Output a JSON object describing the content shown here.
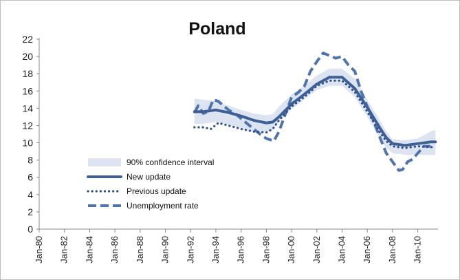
{
  "chart_data": {
    "type": "line",
    "title": "Poland",
    "xlabel": "",
    "ylabel": "",
    "xlim": [
      1980.0,
      2011.6
    ],
    "ylim": [
      0,
      22
    ],
    "yticks": [
      0,
      2,
      4,
      6,
      8,
      10,
      12,
      14,
      16,
      18,
      20,
      22
    ],
    "xtick_labels": [
      "Jan-80",
      "Jan-82",
      "Jan-84",
      "Jan-86",
      "Jan-88",
      "Jan-90",
      "Jan-92",
      "Jan-94",
      "Jan-96",
      "Jan-98",
      "Jan-00",
      "Jan-02",
      "Jan-04",
      "Jan-06",
      "Jan-08",
      "Jan-10"
    ],
    "xtick_years": [
      1980,
      1982,
      1984,
      1986,
      1988,
      1990,
      1992,
      1994,
      1996,
      1998,
      2000,
      2002,
      2004,
      2006,
      2008,
      2010
    ],
    "grid": false,
    "legend_position": "lower-left",
    "colors": {
      "band": "#dce4f2",
      "new": "#3e5f94",
      "previous": "#2e4d85",
      "unemployment": "#4f73ad"
    },
    "confidence_band": {
      "name": "90% confidence interval",
      "x": [
        1992.3,
        1993.0,
        1994.0,
        1995.0,
        1996.0,
        1997.0,
        1998.0,
        1998.5,
        1999.0,
        2000.0,
        2001.0,
        2002.0,
        2003.0,
        2004.0,
        2005.0,
        2006.0,
        2007.0,
        2007.5,
        2008.0,
        2009.0,
        2010.0,
        2011.0,
        2011.4
      ],
      "lower": [
        12.2,
        12.2,
        12.4,
        12.1,
        11.6,
        11.2,
        11.2,
        11.5,
        12.4,
        13.9,
        15.0,
        16.1,
        16.6,
        16.6,
        15.3,
        13.0,
        10.5,
        9.4,
        8.8,
        8.6,
        8.6,
        8.6,
        8.6
      ],
      "upper": [
        15.1,
        15.0,
        14.8,
        14.3,
        13.8,
        13.4,
        13.2,
        13.3,
        14.2,
        15.6,
        16.6,
        17.8,
        18.6,
        18.6,
        17.4,
        15.0,
        12.6,
        11.3,
        10.4,
        10.3,
        10.5,
        11.3,
        11.5
      ]
    },
    "series": [
      {
        "name": "New update",
        "style": "solid",
        "x": [
          1992.3,
          1993.0,
          1994.0,
          1995.0,
          1996.0,
          1997.0,
          1998.0,
          1998.5,
          1999.0,
          2000.0,
          2001.0,
          2002.0,
          2003.0,
          2004.0,
          2005.0,
          2006.0,
          2007.0,
          2007.5,
          2008.0,
          2009.0,
          2010.0,
          2011.0,
          2011.4
        ],
        "y": [
          13.6,
          13.6,
          13.8,
          13.5,
          13.1,
          12.6,
          12.3,
          12.4,
          13.0,
          14.5,
          15.6,
          16.8,
          17.6,
          17.6,
          16.3,
          14.1,
          11.7,
          10.6,
          9.9,
          9.7,
          9.9,
          10.1,
          10.1
        ]
      },
      {
        "name": "Previous update",
        "style": "dotted",
        "x": [
          1992.3,
          1993.0,
          1993.6,
          1994.2,
          1995.0,
          1996.0,
          1997.0,
          1998.0,
          1998.5,
          1999.0,
          2000.0,
          2001.0,
          2002.0,
          2003.0,
          2004.0,
          2005.0,
          2006.0,
          2007.0,
          2007.5,
          2008.0,
          2009.0,
          2010.0,
          2011.0,
          2011.4
        ],
        "y": [
          11.8,
          11.8,
          11.6,
          12.3,
          12.0,
          11.6,
          11.3,
          11.2,
          11.6,
          12.6,
          14.2,
          15.3,
          16.6,
          17.2,
          17.2,
          15.9,
          13.6,
          11.2,
          10.2,
          9.6,
          9.4,
          9.6,
          9.5,
          9.5
        ]
      },
      {
        "name": "Unemployment rate",
        "style": "dashed",
        "x": [
          1992.3,
          1992.6,
          1993.0,
          1993.4,
          1993.8,
          1994.2,
          1995.0,
          1995.6,
          1996.0,
          1996.5,
          1997.0,
          1997.5,
          1998.0,
          1998.6,
          1999.0,
          1999.5,
          2000.0,
          2000.5,
          2001.0,
          2001.5,
          2002.0,
          2002.5,
          2003.0,
          2003.5,
          2004.0,
          2004.5,
          2005.0,
          2005.5,
          2006.0,
          2006.5,
          2007.0,
          2007.5,
          2008.0,
          2008.5,
          2008.8,
          2009.2,
          2009.6,
          2010.0,
          2010.5,
          2011.0
        ],
        "y": [
          13.5,
          14.3,
          13.4,
          13.6,
          15.0,
          14.8,
          13.8,
          13.3,
          12.8,
          12.2,
          11.6,
          11.0,
          10.5,
          10.2,
          11.3,
          13.3,
          15.3,
          15.8,
          16.5,
          18.3,
          19.4,
          20.4,
          20.1,
          19.8,
          20.0,
          19.0,
          18.3,
          16.0,
          14.2,
          12.5,
          10.6,
          8.8,
          7.8,
          6.8,
          6.9,
          7.8,
          8.1,
          8.8,
          9.6,
          9.6
        ]
      }
    ],
    "legend": [
      {
        "name": "90% confidence interval",
        "kind": "band"
      },
      {
        "name": "New update",
        "kind": "solid"
      },
      {
        "name": "Previous update",
        "kind": "dotted"
      },
      {
        "name": "Unemployment rate",
        "kind": "dashed"
      }
    ]
  }
}
